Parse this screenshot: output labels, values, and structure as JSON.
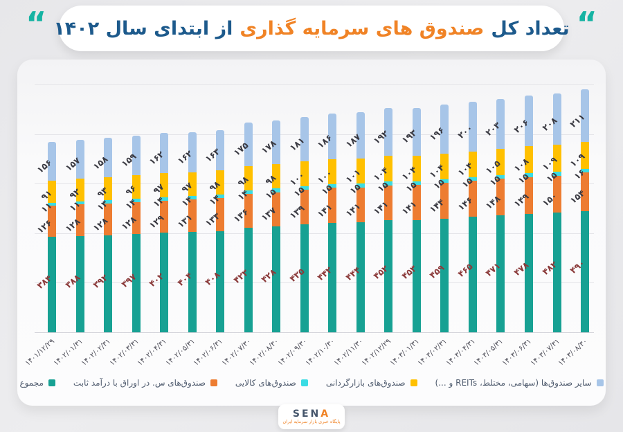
{
  "title": {
    "prefix": "تعداد کل",
    "highlight": "صندوق های سرمایه گذاری",
    "suffix": "از ابتدای سال ۱۴۰۲",
    "quote_glyph": "“"
  },
  "colors": {
    "total": "#17a193",
    "fixed_income": "#ed7c31",
    "commodity": "#3adce4",
    "market_making": "#ffc000",
    "other": "#a7c5e8",
    "title_navy": "#1d5a8c",
    "title_orange": "#f08326",
    "quote_teal": "#16b3a3",
    "total_label": "#8b3a3a",
    "segment_label": "#3a3a42"
  },
  "logo": {
    "name": "SENA",
    "tagline": "پایگاه خبری بازار سرمایه ایران"
  },
  "chart_data": {
    "type": "bar",
    "stacked": true,
    "title": "تعداد کل صندوق های سرمایه گذاری از ابتدای سال ۱۴۰۲",
    "xlabel": "",
    "ylabel": "",
    "ylim": [
      0,
      500
    ],
    "gridline_step": 100,
    "y_axis_labels_visible": false,
    "legend_position": "bottom",
    "x": [
      "1401/12/29",
      "1402/01/31",
      "1402/02/31",
      "1402/03/31",
      "1402/04/31",
      "1402/05/31",
      "1402/06/31",
      "1402/07/30",
      "1402/08/30",
      "1402/09/30",
      "1402/10/30",
      "1402/11/30",
      "1402/12/29",
      "1403/01/31",
      "1403/02/31",
      "1403/04/31",
      "1403/05/31",
      "1403/06/31",
      "1403/07/31",
      "1403/08/30"
    ],
    "series": [
      {
        "name": "مجموع",
        "key": "total",
        "color": "#17a193",
        "values": [
          384,
          388,
          392,
          397,
          402,
          404,
          408,
          423,
          428,
          435,
          442,
          444,
          452,
          453,
          459,
          465,
          471,
          478,
          482,
          490
        ]
      },
      {
        "name": "صندوق‌های س. در اوراق با درآمد ثابت",
        "key": "fixed_income",
        "color": "#ed7c31",
        "values": [
          126,
          128,
          128,
          128,
          129,
          131,
          133,
          136,
          137,
          139,
          141,
          141,
          141,
          141,
          144,
          146,
          148,
          149,
          150,
          154
        ]
      },
      {
        "name": "صندوق‌های کالایی",
        "key": "commodity",
        "color": "#3adce4",
        "values": [
          11,
          11,
          13,
          14,
          14,
          14,
          14,
          14,
          15,
          15,
          15,
          15,
          15,
          15,
          15,
          15,
          15,
          15,
          15,
          16
        ]
      },
      {
        "name": "صندوق‌های بازارگردانی",
        "key": "market_making",
        "color": "#ffc000",
        "values": [
          91,
          92,
          93,
          96,
          97,
          97,
          98,
          98,
          98,
          100,
          100,
          101,
          104,
          104,
          104,
          104,
          105,
          108,
          109,
          109
        ]
      },
      {
        "name": "سایر صندوق‌ها (سهامی، مختلط، REITs و ...)",
        "key": "other",
        "color": "#a7c5e8",
        "values": [
          156,
          157,
          158,
          159,
          162,
          162,
          163,
          175,
          178,
          181,
          186,
          187,
          192,
          193,
          196,
          200,
          203,
          206,
          208,
          211
        ]
      }
    ]
  }
}
